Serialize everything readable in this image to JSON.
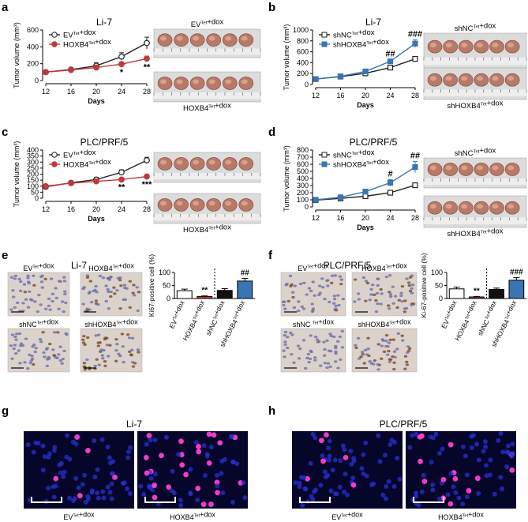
{
  "panel_labels": [
    "a",
    "b",
    "c",
    "d",
    "e",
    "f",
    "g",
    "h"
  ],
  "colors": {
    "ev": "#222222",
    "hoxb4": "#c0393b",
    "shnc": "#222222",
    "shhoxb4": "#3a74b3",
    "ihc_bg": "#d9cfc8",
    "if_bg": "#05062a"
  },
  "chart_data": [
    {
      "type": "line",
      "panel": "a",
      "title": "Li-7",
      "xlabel": "Days",
      "ylabel": "Tumor volume (mm³)",
      "x": [
        12,
        16,
        20,
        24,
        28
      ],
      "ylim": [
        0,
        600
      ],
      "yticks": [
        0,
        200,
        400,
        600
      ],
      "series": [
        {
          "name": "EVTet+dox",
          "values": [
            100,
            130,
            175,
            285,
            445
          ],
          "err": [
            8,
            20,
            35,
            45,
            70
          ]
        },
        {
          "name": "HOXB4Tet+dox",
          "values": [
            100,
            125,
            155,
            195,
            260
          ],
          "err": [
            8,
            18,
            20,
            25,
            30
          ]
        }
      ],
      "annotations": [
        {
          "x": 24,
          "text": "*"
        },
        {
          "x": 28,
          "text": "**"
        }
      ]
    },
    {
      "type": "line",
      "panel": "b",
      "title": "Li-7",
      "xlabel": "Days",
      "ylabel": "Tumor volume (mm³)",
      "x": [
        12,
        16,
        20,
        24,
        28
      ],
      "ylim": [
        0,
        1000
      ],
      "yticks": [
        0,
        200,
        400,
        600,
        800,
        1000
      ],
      "series": [
        {
          "name": "shNCTet+dox",
          "values": [
            100,
            145,
            205,
            310,
            470
          ],
          "err": [
            10,
            15,
            20,
            25,
            45
          ]
        },
        {
          "name": "shHOXB4Tet+dox",
          "values": [
            100,
            150,
            240,
            425,
            750
          ],
          "err": [
            10,
            15,
            25,
            35,
            70
          ]
        }
      ],
      "annotations": [
        {
          "x": 24,
          "text": "##"
        },
        {
          "x": 28,
          "text": "###"
        }
      ]
    },
    {
      "type": "line",
      "panel": "c",
      "title": "PLC/PRF/5",
      "xlabel": "Days",
      "ylabel": "Tumor volume (mm³)",
      "x": [
        12,
        16,
        20,
        24,
        28
      ],
      "ylim": [
        0,
        400
      ],
      "yticks": [
        0,
        50,
        100,
        150,
        200,
        250,
        300,
        350,
        400
      ],
      "series": [
        {
          "name": "EVTet+dox",
          "values": [
            95,
            128,
            155,
            215,
            315
          ],
          "err": [
            8,
            15,
            18,
            20,
            25
          ]
        },
        {
          "name": "HOXB4Tet+dox",
          "values": [
            100,
            125,
            140,
            155,
            180
          ],
          "err": [
            8,
            12,
            15,
            15,
            15
          ]
        }
      ],
      "annotations": [
        {
          "x": 24,
          "text": "**"
        },
        {
          "x": 28,
          "text": "***"
        }
      ]
    },
    {
      "type": "line",
      "panel": "d",
      "title": "PLC/PRF/5",
      "xlabel": "Days",
      "ylabel": "Tumor volume (mm³)",
      "x": [
        12,
        16,
        20,
        24,
        28
      ],
      "ylim": [
        0,
        800
      ],
      "yticks": [
        0,
        100,
        200,
        300,
        400,
        500,
        600,
        700,
        800
      ],
      "series": [
        {
          "name": "shNCTet+dox",
          "values": [
            95,
            120,
            150,
            200,
            305
          ],
          "err": [
            8,
            12,
            15,
            18,
            20
          ]
        },
        {
          "name": "shHOXB4Tet+dox",
          "values": [
            100,
            135,
            215,
            340,
            560
          ],
          "err": [
            10,
            15,
            35,
            45,
            80
          ]
        }
      ],
      "annotations": [
        {
          "x": 24,
          "text": "#"
        },
        {
          "x": 28,
          "text": "##"
        }
      ]
    },
    {
      "type": "bar",
      "panel": "e",
      "title": "Li-7",
      "ylabel": "Ki67-positive cell (%)",
      "ylim": [
        0,
        100
      ],
      "yticks": [
        0,
        50,
        100
      ],
      "categories": [
        "EVTet+dox",
        "HOXB4Tet+dox",
        "shNCTet+dox",
        "shHOXB4Tet+dox"
      ],
      "values": [
        30,
        8,
        31,
        67
      ],
      "err": [
        6,
        2,
        7,
        10
      ],
      "annotations": [
        {
          "category": 1,
          "text": "**"
        },
        {
          "category": 3,
          "text": "##"
        }
      ]
    },
    {
      "type": "bar",
      "panel": "f",
      "title": "PLC/PRF/5",
      "ylabel": "Ki-67-positive cell (%)",
      "ylim": [
        0,
        100
      ],
      "yticks": [
        0,
        50,
        100
      ],
      "categories": [
        "EVTet+dox",
        "HOXB4Tet+dox",
        "shNCTet+dox",
        "shHOXB4Tet+dox"
      ],
      "values": [
        37,
        6,
        35,
        70
      ],
      "err": [
        7,
        2,
        5,
        10
      ],
      "annotations": [
        {
          "category": 1,
          "text": "**"
        },
        {
          "category": 3,
          "text": "###"
        }
      ]
    }
  ],
  "photos": {
    "a_top": "EVTet+dox",
    "a_bottom": "HOXB4Tet+dox",
    "b_top": "shNCTet+dox",
    "b_bottom": "shHOXB4Tet+dox",
    "c_top": "",
    "c_bottom": "HOXB4Tet+dox",
    "d_top": "shNCTet+dox",
    "d_bottom": "shHOXB4Tet+dox"
  },
  "ihc": {
    "e": [
      "EVTet+dox",
      "HOXB4Tet+dox",
      "shNCTet+dox",
      "shHOXB4Tet+dox"
    ],
    "f": [
      "EVTet+dox",
      "HOXB4Tet+dox",
      "shNC Tet+dox",
      "shHOXB4Tet+dox"
    ]
  },
  "immunofluor": {
    "g": {
      "title": "Li-7",
      "labels": [
        "EVTet+dox",
        "HOXB4Tet+dox"
      ]
    },
    "h": {
      "title": "PLC/PRF/5",
      "labels": [
        "EVTet+dox",
        "HOXB4Tet+dox"
      ]
    }
  }
}
